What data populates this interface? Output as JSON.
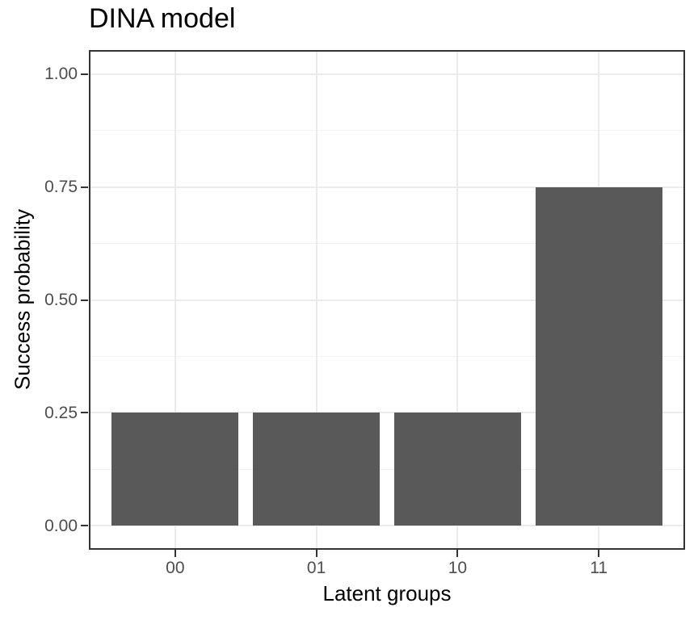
{
  "chart_data": {
    "type": "bar",
    "title": "DINA model",
    "xlabel": "Latent groups",
    "ylabel": "Success probability",
    "categories": [
      "00",
      "01",
      "10",
      "11"
    ],
    "values": [
      0.25,
      0.25,
      0.25,
      0.75
    ],
    "ylim": [
      0,
      1
    ],
    "y_ticks": [
      0,
      0.25,
      0.5,
      0.75,
      1
    ],
    "y_tick_labels": [
      "0.00",
      "0.25",
      "0.50",
      "0.75",
      "1.00"
    ],
    "y_minor_ticks": [
      0.125,
      0.375,
      0.625,
      0.875
    ],
    "grid": true,
    "legend_position": "none",
    "bar_width_fraction": 0.9,
    "colors": {
      "bar_fill": "#595959",
      "panel_border": "#333333",
      "grid_major": "#EBEBEB",
      "grid_minor": "#F2F2F2",
      "tick_label": "#4D4D4D",
      "axis_text": "#000000",
      "tick_mark": "#333333",
      "background": "#FFFFFF"
    }
  }
}
